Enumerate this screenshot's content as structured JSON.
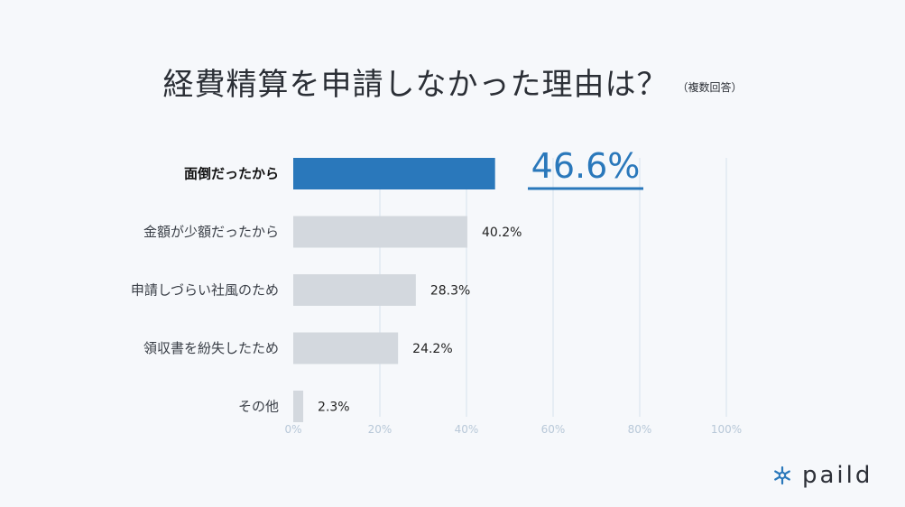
{
  "title": "経費精算を申請しなかった理由は？",
  "subtitle": "（複数回答）",
  "brand": "paild",
  "colors": {
    "highlight_bar": "#2a78bb",
    "bar": "#d3d8de",
    "grid": "#d6e2ec",
    "background": "#f6f8fb"
  },
  "chart_data": {
    "type": "bar",
    "orientation": "horizontal",
    "categories": [
      "面倒だったから",
      "金額が少額だったから",
      "申請しづらい社風のため",
      "領収書を紛失したため",
      "その他"
    ],
    "values": [
      46.6,
      40.2,
      28.3,
      24.2,
      2.3
    ],
    "value_labels": [
      "46.6%",
      "40.2%",
      "28.3%",
      "24.2%",
      "2.3%"
    ],
    "highlight_index": 0,
    "xlim": [
      0,
      100
    ],
    "ticks": [
      0,
      20,
      40,
      60,
      80,
      100
    ],
    "tick_labels": [
      "0%",
      "20%",
      "40%",
      "60%",
      "80%",
      "100%"
    ],
    "grid": true
  }
}
